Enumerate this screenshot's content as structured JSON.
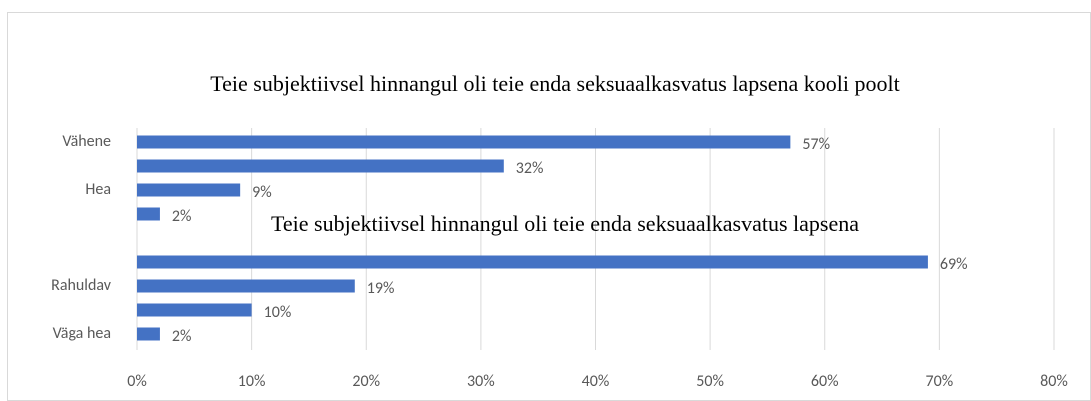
{
  "chart_data": [
    {
      "type": "bar",
      "orientation": "horizontal",
      "title": "Teie subjektiivsel hinnangul oli teie enda seksuaalkasvatus lapsena kooli poolt",
      "categories": [
        "Vähene",
        null,
        "Hea",
        null
      ],
      "values": [
        57,
        32,
        9,
        2
      ],
      "value_labels": [
        "57%",
        "32%",
        "9%",
        "2%"
      ],
      "color": "#4472c4",
      "xlim": [
        0,
        80
      ]
    },
    {
      "type": "bar",
      "orientation": "horizontal",
      "title": "Teie subjektiivsel hinnangul oli teie enda seksuaalkasvatus lapsena",
      "categories": [
        null,
        "Rahuldav",
        null,
        "Väga hea"
      ],
      "values": [
        69,
        19,
        10,
        2
      ],
      "value_labels": [
        "69%",
        "19%",
        "10%",
        "2%"
      ],
      "color": "#4472c4",
      "xlim": [
        0,
        80
      ],
      "xticks": [
        {
          "value": 0,
          "label": "0%"
        },
        {
          "value": 10,
          "label": "10%"
        },
        {
          "value": 20,
          "label": "20%"
        },
        {
          "value": 30,
          "label": "30%"
        },
        {
          "value": 40,
          "label": "40%"
        },
        {
          "value": 50,
          "label": "50%"
        },
        {
          "value": 60,
          "label": "60%"
        },
        {
          "value": 70,
          "label": "70%"
        },
        {
          "value": 80,
          "label": "80%"
        }
      ],
      "grid": true
    }
  ]
}
